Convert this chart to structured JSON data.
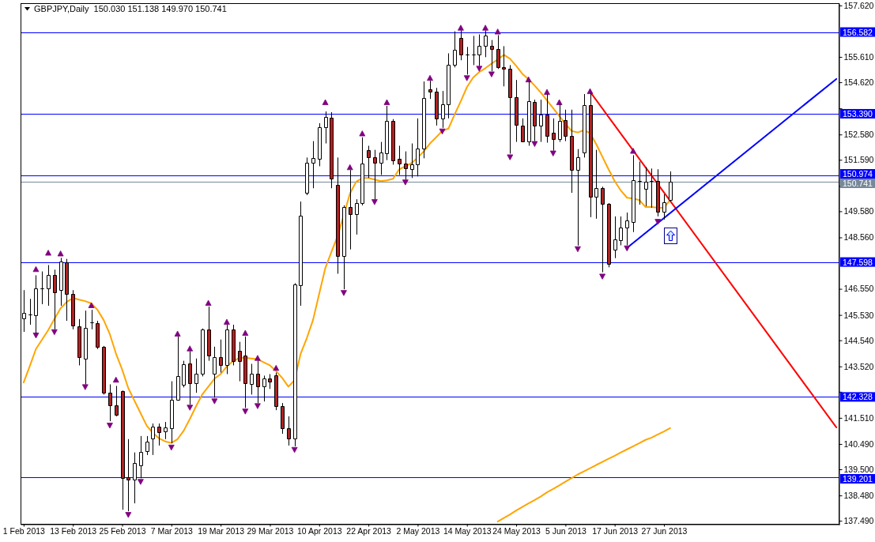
{
  "chart_data": {
    "type": "candlestick",
    "title": "GBPJPY,Daily  150.030 151.138 149.970 150.741",
    "categories": [
      "1 Feb 2013",
      null,
      null,
      null,
      null,
      null,
      null,
      null,
      "13 Feb 2013",
      null,
      null,
      null,
      null,
      null,
      null,
      null,
      "25 Feb 2013",
      null,
      null,
      null,
      null,
      null,
      null,
      null,
      "7 Mar 2013",
      null,
      null,
      null,
      null,
      null,
      null,
      null,
      "19 Mar 2013",
      null,
      null,
      null,
      null,
      null,
      null,
      null,
      "29 Mar 2013",
      null,
      null,
      null,
      null,
      null,
      null,
      null,
      "10 Apr 2013",
      null,
      null,
      null,
      null,
      null,
      null,
      null,
      "22 Apr 2013",
      null,
      null,
      null,
      null,
      null,
      null,
      null,
      "2 May 2013",
      null,
      null,
      null,
      null,
      null,
      null,
      null,
      "14 May 2013",
      null,
      null,
      null,
      null,
      null,
      null,
      null,
      "24 May 2013",
      null,
      null,
      null,
      null,
      null,
      null,
      null,
      "5 Jun 2013",
      null,
      null,
      null,
      null,
      null,
      null,
      null,
      "17 Jun 2013",
      null,
      null,
      null,
      null,
      null,
      null,
      null,
      "27 Jun 2013",
      null,
      null,
      null,
      null,
      null,
      null,
      null,
      null,
      null,
      null,
      null,
      null,
      null,
      null,
      null,
      null,
      null,
      null,
      null,
      null,
      null,
      null,
      null,
      null,
      null,
      null,
      null,
      null
    ],
    "ohlc": [
      [
        145.4,
        146.5,
        144.87,
        145.61
      ],
      [
        145.55,
        146.16,
        145.15,
        145.55
      ],
      [
        145.52,
        147.08,
        144.81,
        146.56
      ],
      [
        146.56,
        147.23,
        145.95,
        146.56
      ],
      [
        146.56,
        147.48,
        145.89,
        147.08
      ],
      [
        147.08,
        147.3,
        144.97,
        146.41
      ],
      [
        146.5,
        147.76,
        145.89,
        147.63
      ],
      [
        147.6,
        147.72,
        145.3,
        146.35
      ],
      [
        146.35,
        146.5,
        144.97,
        145.12
      ],
      [
        145.09,
        145.37,
        143.56,
        143.89
      ],
      [
        143.83,
        145.7,
        142.82,
        145.03
      ],
      [
        145.24,
        145.73,
        144.97,
        145.24
      ],
      [
        145.21,
        145.3,
        144.2,
        144.29
      ],
      [
        144.29,
        144.32,
        142.42,
        142.49
      ],
      [
        142.49,
        142.82,
        141.38,
        141.99
      ],
      [
        141.99,
        142.76,
        141.57,
        141.63
      ],
      [
        142.55,
        142.58,
        137.92,
        139.15
      ],
      [
        139.18,
        140.68,
        137.86,
        139.09
      ],
      [
        139.09,
        140.16,
        138.17,
        139.76
      ],
      [
        139.67,
        140.8,
        139.15,
        140.19
      ],
      [
        140.22,
        140.8,
        140.06,
        140.59
      ],
      [
        140.71,
        141.29,
        140.06,
        141.17
      ],
      [
        141.17,
        141.29,
        140.43,
        140.95
      ],
      [
        140.98,
        141.35,
        140.68,
        141.14
      ],
      [
        141.11,
        142.94,
        140.52,
        142.21
      ],
      [
        142.21,
        144.69,
        142.18,
        143.13
      ],
      [
        142.79,
        143.74,
        142.7,
        143.62
      ],
      [
        143.65,
        144.11,
        142.03,
        142.88
      ],
      [
        142.85,
        143.83,
        142.49,
        143.22
      ],
      [
        143.22,
        145.0,
        143.13,
        144.97
      ],
      [
        144.97,
        145.86,
        143.74,
        143.96
      ],
      [
        143.22,
        144.29,
        142.3,
        143.89
      ],
      [
        143.89,
        144.57,
        143.28,
        143.56
      ],
      [
        143.56,
        145.15,
        143.22,
        144.97
      ],
      [
        144.97,
        145.15,
        143.56,
        143.74
      ],
      [
        144.14,
        144.48,
        142.94,
        143.74
      ],
      [
        143.93,
        144.69,
        141.9,
        142.85
      ],
      [
        142.82,
        143.62,
        142.42,
        143.22
      ],
      [
        143.22,
        143.74,
        142.09,
        142.73
      ],
      [
        142.73,
        143.16,
        142.15,
        143.04
      ],
      [
        143.04,
        143.22,
        142.64,
        142.94
      ],
      [
        143.16,
        143.28,
        141.81,
        141.96
      ],
      [
        141.96,
        142.09,
        140.89,
        141.11
      ],
      [
        141.11,
        141.57,
        140.43,
        140.71
      ],
      [
        140.71,
        146.77,
        140.4,
        146.71
      ],
      [
        146.68,
        149.96,
        145.89,
        149.41
      ],
      [
        150.3,
        151.68,
        150.21,
        151.49
      ],
      [
        151.49,
        152.32,
        150.48,
        151.65
      ],
      [
        151.62,
        153.02,
        151.34,
        152.87
      ],
      [
        152.87,
        153.48,
        152.23,
        153.27
      ],
      [
        153.24,
        153.45,
        150.48,
        150.85
      ],
      [
        150.6,
        151.68,
        147.14,
        147.82
      ],
      [
        147.82,
        149.81,
        146.53,
        149.75
      ],
      [
        149.75,
        151.19,
        148.09,
        149.47
      ],
      [
        149.47,
        150.05,
        148.67,
        149.9
      ],
      [
        149.9,
        152.47,
        149.81,
        151.46
      ],
      [
        151.98,
        152.14,
        150.88,
        151.68
      ],
      [
        151.68,
        151.98,
        150.05,
        151.49
      ],
      [
        151.49,
        152.29,
        151.0,
        151.89
      ],
      [
        151.86,
        153.7,
        151.58,
        153.12
      ],
      [
        153.12,
        153.18,
        151.4,
        151.58
      ],
      [
        151.62,
        152.14,
        151.0,
        151.46
      ],
      [
        151.43,
        151.92,
        150.82,
        151.25
      ],
      [
        151.22,
        152.23,
        150.88,
        151.4
      ],
      [
        151.4,
        153.21,
        150.94,
        152.04
      ],
      [
        152.04,
        154.65,
        151.65,
        154.0
      ],
      [
        154.34,
        154.68,
        153.97,
        154.25
      ],
      [
        154.25,
        154.4,
        152.93,
        153.21
      ],
      [
        153.21,
        154.28,
        152.84,
        153.76
      ],
      [
        153.76,
        155.75,
        153.21,
        155.29
      ],
      [
        155.29,
        156.61,
        155.2,
        155.9
      ],
      [
        156.36,
        156.64,
        155.48,
        155.69
      ],
      [
        155.69,
        156.0,
        154.92,
        155.69
      ],
      [
        155.69,
        156.43,
        155.29,
        155.69
      ],
      [
        155.69,
        156.49,
        155.26,
        156.03
      ],
      [
        156.03,
        156.64,
        155.6,
        156.46
      ],
      [
        156.03,
        156.27,
        155.05,
        155.93
      ],
      [
        155.93,
        156.46,
        155.14,
        155.2
      ],
      [
        155.2,
        156.03,
        154.46,
        155.14
      ],
      [
        155.14,
        155.29,
        151.83,
        154.04
      ],
      [
        154.04,
        154.71,
        152.29,
        152.96
      ],
      [
        152.93,
        153.21,
        152.29,
        152.32
      ],
      [
        152.32,
        154.65,
        152.14,
        153.88
      ],
      [
        153.85,
        153.94,
        152.32,
        152.93
      ],
      [
        152.93,
        153.94,
        152.29,
        153.36
      ],
      [
        153.36,
        154.16,
        152.26,
        152.53
      ],
      [
        152.66,
        153.21,
        151.95,
        152.41
      ],
      [
        152.41,
        153.76,
        152.29,
        153.12
      ],
      [
        153.15,
        153.55,
        152.32,
        152.53
      ],
      [
        152.53,
        153.55,
        150.3,
        151.19
      ],
      [
        151.19,
        152.01,
        148.24,
        151.68
      ],
      [
        151.89,
        154.16,
        151.68,
        153.73
      ],
      [
        153.73,
        154.19,
        149.35,
        150.14
      ],
      [
        150.14,
        151.98,
        149.29,
        150.48
      ],
      [
        150.48,
        150.54,
        147.2,
        149.87
      ],
      [
        149.87,
        149.9,
        147.39,
        147.54
      ],
      [
        148.09,
        149.38,
        147.75,
        148.49
      ],
      [
        148.46,
        149.38,
        148.25,
        148.95
      ],
      [
        148.95,
        149.53,
        148.25,
        149.23
      ],
      [
        149.16,
        151.77,
        148.77,
        150.79
      ],
      [
        150.76,
        151.52,
        149.84,
        150.76
      ],
      [
        150.45,
        151.31,
        149.78,
        150.73
      ],
      [
        150.76,
        151.25,
        149.72,
        150.76
      ],
      [
        150.76,
        151.22,
        149.38,
        149.56
      ],
      [
        149.56,
        150.24,
        149.26,
        149.93
      ],
      [
        150.03,
        151.138,
        149.97,
        150.741
      ],
      null,
      null,
      null,
      null,
      null,
      null,
      null,
      null,
      null,
      null,
      null,
      null,
      null,
      null,
      null,
      null,
      null,
      null,
      null,
      null,
      null,
      null,
      null,
      null,
      null,
      null,
      null
    ],
    "colors": [
      "#ffffff",
      "#000000",
      "#ffffff",
      "#000000",
      "#ffffff",
      "#b22222",
      "#ffffff",
      "#b22222",
      "#b22222",
      "#b22222",
      "#ffffff",
      "#000000",
      "#b22222",
      "#b22222",
      "#b22222",
      "#b22222",
      "#b22222",
      "#b22222",
      "#ffffff",
      "#ffffff",
      "#ffffff",
      "#ffffff",
      "#b22222",
      "#ffffff",
      "#ffffff",
      "#ffffff",
      "#ffffff",
      "#b22222",
      "#ffffff",
      "#ffffff",
      "#b22222",
      "#ffffff",
      "#b22222",
      "#ffffff",
      "#b22222",
      "#b22222",
      "#b22222",
      "#ffffff",
      "#b22222",
      "#ffffff",
      "#b22222",
      "#b22222",
      "#b22222",
      "#b22222",
      "#ffffff",
      "#ffffff",
      "#ffffff",
      "#ffffff",
      "#ffffff",
      "#ffffff",
      "#b22222",
      "#b22222",
      "#ffffff",
      "#b22222",
      "#ffffff",
      "#ffffff",
      "#b22222",
      "#b22222",
      "#ffffff",
      "#ffffff",
      "#b22222",
      "#b22222",
      "#b22222",
      "#ffffff",
      "#ffffff",
      "#ffffff",
      "#b22222",
      "#b22222",
      "#ffffff",
      "#ffffff",
      "#ffffff",
      "#b22222",
      "#000000",
      "#000000",
      "#ffffff",
      "#ffffff",
      "#b22222",
      "#b22222",
      "#b22222",
      "#b22222",
      "#b22222",
      "#b22222",
      "#ffffff",
      "#b22222",
      "#ffffff",
      "#b22222",
      "#b22222",
      "#ffffff",
      "#b22222",
      "#b22222",
      "#ffffff",
      "#ffffff",
      "#b22222",
      "#ffffff",
      "#b22222",
      "#b22222",
      "#ffffff",
      "#ffffff",
      "#ffffff",
      "#ffffff",
      "#000000",
      "#ffffff",
      "#000000",
      "#b22222",
      "#ffffff",
      "#ffffff",
      null,
      null,
      null,
      null,
      null,
      null,
      null,
      null,
      null,
      null,
      null,
      null,
      null,
      null,
      null,
      null,
      null,
      null,
      null,
      null,
      null,
      null,
      null,
      null,
      null,
      null,
      null
    ],
    "series": [
      {
        "type": "line",
        "color": "#ffa500",
        "values": [
          142.89,
          143.53,
          144.2,
          144.57,
          144.94,
          145.37,
          145.79,
          146.04,
          146.19,
          146.13,
          146.07,
          145.98,
          145.73,
          145.33,
          144.78,
          144.02,
          143.4,
          142.67,
          142.18,
          141.69,
          141.2,
          140.92,
          140.71,
          140.59,
          140.53,
          140.68,
          141.01,
          141.47,
          141.96,
          142.42,
          142.73,
          143.04,
          143.22,
          143.52,
          143.72,
          143.85,
          143.86,
          143.83,
          143.8,
          143.68,
          143.56,
          143.34,
          143.07,
          142.73,
          142.98,
          144.02,
          144.63,
          145.33,
          146.35,
          147.36,
          148.0,
          148.61,
          null,
          150.27,
          150.73,
          150.88,
          150.88,
          150.82,
          150.76,
          150.79,
          150.85,
          151.22,
          151.34,
          151.46,
          151.68,
          151.92,
          152.23,
          152.47,
          152.72,
          152.81,
          153.36,
          153.88,
          154.43,
          154.8,
          155.02,
          155.17,
          155.35,
          155.51,
          155.69,
          155.54,
          155.26,
          154.95,
          154.74,
          154.49,
          154.22,
          153.91,
          153.61,
          153.3,
          152.99,
          152.72,
          152.66,
          152.75,
          152.63,
          152.2,
          151.71,
          151.22,
          150.76,
          150.39,
          150.11,
          150.08,
          150.02,
          149.75,
          149.75,
          149.72,
          149.72,
          150.02,
          null,
          null,
          null,
          null,
          null,
          null,
          null,
          null,
          null,
          null,
          null,
          null,
          null,
          null,
          null,
          null,
          null,
          null,
          null,
          null,
          null,
          null,
          null,
          null,
          null,
          null,
          null
        ]
      },
      {
        "type": "line",
        "color": "#ffa500",
        "values": [
          null,
          null,
          null,
          null,
          null,
          null,
          null,
          null,
          null,
          null,
          null,
          null,
          null,
          null,
          null,
          null,
          null,
          null,
          null,
          null,
          null,
          null,
          null,
          null,
          null,
          null,
          null,
          null,
          null,
          null,
          null,
          null,
          null,
          null,
          null,
          null,
          null,
          null,
          null,
          null,
          null,
          null,
          null,
          null,
          null,
          null,
          null,
          null,
          null,
          null,
          null,
          null,
          null,
          null,
          null,
          null,
          null,
          null,
          null,
          null,
          null,
          null,
          null,
          null,
          null,
          null,
          null,
          null,
          null,
          null,
          null,
          null,
          null,
          null,
          null,
          null,
          null,
          137.46,
          137.6,
          137.74,
          137.89,
          138.03,
          138.17,
          138.3,
          138.44,
          138.6,
          138.73,
          138.87,
          139.02,
          139.16,
          139.3,
          139.42,
          139.54,
          139.67,
          139.79,
          139.91,
          140.03,
          140.16,
          140.28,
          140.4,
          140.52,
          140.65,
          140.74,
          140.86,
          140.98,
          141.11,
          null,
          null,
          null,
          null,
          null,
          null,
          null,
          null,
          null,
          null,
          null,
          null,
          null,
          null,
          null,
          null,
          null,
          null,
          null,
          null,
          null,
          null,
          null,
          null,
          null,
          null,
          null
        ]
      },
      {
        "type": "line",
        "color": "#ff0000",
        "values": [
          null,
          null,
          null,
          null,
          null,
          null,
          null,
          null,
          null,
          null,
          null,
          null,
          null,
          null,
          null,
          null,
          null,
          null,
          null,
          null,
          null,
          null,
          null,
          null,
          null,
          null,
          null,
          null,
          null,
          null,
          null,
          null,
          null,
          null,
          null,
          null,
          null,
          null,
          null,
          null,
          null,
          null,
          null,
          null,
          null,
          null,
          null,
          null,
          null,
          null,
          null,
          null,
          null,
          null,
          null,
          null,
          null,
          null,
          null,
          null,
          null,
          null,
          null,
          null,
          null,
          null,
          null,
          null,
          null,
          null,
          null,
          null,
          null,
          null,
          null,
          null,
          null,
          null,
          null,
          null,
          null,
          null,
          null,
          null,
          null,
          null,
          null,
          null,
          null,
          null,
          null,
          null,
          154.25,
          null,
          null,
          null,
          null,
          null,
          null,
          null,
          null,
          null,
          null,
          null,
          null,
          null,
          null,
          null,
          null,
          null,
          null,
          null,
          null,
          null,
          null,
          null,
          null,
          null,
          null,
          null,
          null,
          null,
          null,
          null,
          null,
          null,
          null,
          null,
          null,
          null,
          null,
          null,
          141.14
        ]
      },
      {
        "type": "line",
        "color": "#0000ff",
        "values": [
          null,
          null,
          null,
          null,
          null,
          null,
          null,
          null,
          null,
          null,
          null,
          null,
          null,
          null,
          null,
          null,
          null,
          null,
          null,
          null,
          null,
          null,
          null,
          null,
          null,
          null,
          null,
          null,
          null,
          null,
          null,
          null,
          null,
          null,
          null,
          null,
          null,
          null,
          null,
          null,
          null,
          null,
          null,
          null,
          null,
          null,
          null,
          null,
          null,
          null,
          null,
          null,
          null,
          null,
          null,
          null,
          null,
          null,
          null,
          null,
          null,
          null,
          null,
          null,
          null,
          null,
          null,
          null,
          null,
          null,
          null,
          null,
          null,
          null,
          null,
          null,
          null,
          null,
          null,
          null,
          null,
          null,
          null,
          null,
          null,
          null,
          null,
          null,
          null,
          null,
          null,
          null,
          null,
          null,
          null,
          null,
          null,
          null,
          148.15,
          null,
          null,
          null,
          null,
          null,
          null,
          null,
          null,
          null,
          null,
          null,
          null,
          null,
          null,
          null,
          null,
          null,
          null,
          null,
          null,
          null,
          null,
          null,
          null,
          null,
          null,
          null,
          null,
          null,
          null,
          null,
          null,
          null,
          154.75
        ]
      },
      {
        "type": "scatter",
        "color": "#800080",
        "marker": "triangle",
        "values": [
          null,
          null,
          147.3,
          null,
          147.94,
          null,
          147.91,
          null,
          null,
          null,
          null,
          145.89,
          null,
          null,
          null,
          142.98,
          null,
          null,
          null,
          null,
          null,
          null,
          null,
          null,
          null,
          144.78,
          null,
          144.2,
          null,
          null,
          145.98,
          null,
          null,
          145.24,
          null,
          null,
          144.81,
          null,
          143.83,
          null,
          null,
          143.44,
          null,
          null,
          null,
          null,
          null,
          null,
          null,
          153.82,
          null,
          null,
          null,
          151.28,
          null,
          152.6,
          null,
          null,
          null,
          153.82,
          null,
          null,
          null,
          null,
          null,
          null,
          154.77,
          null,
          null,
          null,
          null,
          156.73,
          null,
          null,
          null,
          156.73,
          null,
          156.58,
          null,
          null,
          null,
          null,
          154.71,
          null,
          null,
          154.22,
          null,
          153.82,
          null,
          null,
          null,
          null,
          154.25,
          null,
          null,
          null,
          null,
          null,
          null,
          151.92,
          null,
          null,
          null,
          null,
          null,
          null,
          null,
          null,
          null,
          null,
          null,
          null,
          null,
          null,
          null,
          null,
          null,
          null,
          null,
          null,
          null,
          null,
          null,
          null,
          null,
          null,
          null,
          null,
          null,
          null,
          null,
          null,
          null
        ]
      },
      {
        "type": "scatter",
        "color": "#800080",
        "marker": "triangle",
        "values": [
          null,
          null,
          144.75,
          null,
          null,
          144.88,
          null,
          null,
          null,
          null,
          142.73,
          null,
          null,
          null,
          141.23,
          null,
          null,
          137.74,
          null,
          139.03,
          null,
          null,
          null,
          null,
          140.37,
          null,
          null,
          141.93,
          null,
          null,
          null,
          142.18,
          null,
          null,
          null,
          null,
          141.78,
          null,
          141.99,
          null,
          null,
          null,
          null,
          null,
          140.28,
          null,
          null,
          null,
          null,
          null,
          null,
          null,
          146.41,
          null,
          null,
          null,
          null,
          149.96,
          null,
          null,
          null,
          null,
          150.73,
          null,
          null,
          null,
          null,
          null,
          152.72,
          null,
          null,
          null,
          154.8,
          null,
          155.17,
          null,
          154.95,
          null,
          null,
          151.71,
          null,
          null,
          null,
          152.23,
          null,
          null,
          151.86,
          null,
          null,
          null,
          148.12,
          null,
          null,
          null,
          147.05,
          null,
          null,
          null,
          148.15,
          null,
          null,
          null,
          null,
          149.19,
          null,
          null,
          null,
          null,
          null,
          null,
          null,
          null,
          null,
          null,
          null,
          null,
          null,
          null,
          null,
          null,
          null,
          null,
          null,
          null,
          null,
          null,
          null,
          null,
          null,
          null,
          null,
          null,
          null
        ]
      }
    ],
    "ylim": [
      137.34,
      157.71
    ],
    "yticks": [
      {
        "value": 157.62,
        "label": "157.620"
      },
      {
        "value": 155.61,
        "label": "155.610"
      },
      {
        "value": 154.62,
        "label": "154.620"
      },
      {
        "value": 153.6,
        "label": null
      },
      {
        "value": 152.58,
        "label": "152.580"
      },
      {
        "value": 151.59,
        "label": "151.590"
      },
      {
        "value": 150.57,
        "label": null
      },
      {
        "value": 149.58,
        "label": "149.580"
      },
      {
        "value": 148.56,
        "label": "148.560"
      },
      {
        "value": 146.55,
        "label": "146.550"
      },
      {
        "value": 145.53,
        "label": "145.530"
      },
      {
        "value": 144.54,
        "label": "144.540"
      },
      {
        "value": 143.52,
        "label": "143.520"
      },
      {
        "value": 142.53,
        "label": null
      },
      {
        "value": 141.51,
        "label": "141.510"
      },
      {
        "value": 140.49,
        "label": "140.490"
      },
      {
        "value": 139.5,
        "label": "139.500"
      },
      {
        "value": 138.48,
        "label": "138.480"
      },
      {
        "value": 137.49,
        "label": "137.490"
      }
    ],
    "ref_lines": [
      {
        "axis": "y",
        "value": 156.582,
        "label": "156.582",
        "color": "#0000ff"
      },
      {
        "axis": "y",
        "value": 153.39,
        "label": "153.390",
        "color": "#0000ff"
      },
      {
        "axis": "y",
        "value": 150.974,
        "label": "150.974",
        "color": "#0000ff"
      },
      {
        "axis": "y",
        "value": 150.741,
        "label": "150.741",
        "color": "#778899"
      },
      {
        "axis": "y",
        "value": 147.598,
        "label": "147.598",
        "color": "#0000ff"
      },
      {
        "axis": "y",
        "value": 142.328,
        "label": "142.328",
        "color": "#0000ff"
      },
      {
        "axis": "y",
        "value": 139.201,
        "label": "139.201",
        "color": "#0000ff"
      }
    ]
  }
}
